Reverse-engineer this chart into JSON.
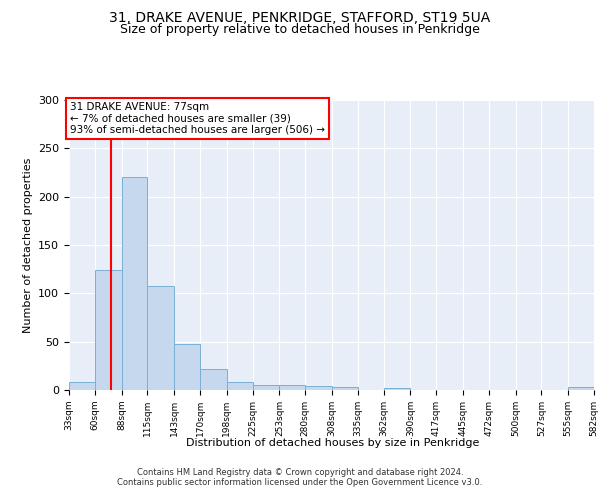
{
  "title1": "31, DRAKE AVENUE, PENKRIDGE, STAFFORD, ST19 5UA",
  "title2": "Size of property relative to detached houses in Penkridge",
  "xlabel": "Distribution of detached houses by size in Penkridge",
  "ylabel": "Number of detached properties",
  "bin_edges": [
    33,
    60,
    88,
    115,
    143,
    170,
    198,
    225,
    253,
    280,
    308,
    335,
    362,
    390,
    417,
    445,
    472,
    500,
    527,
    555,
    582
  ],
  "bar_heights": [
    8,
    124,
    220,
    108,
    48,
    22,
    8,
    5,
    5,
    4,
    3,
    0,
    2,
    0,
    0,
    0,
    0,
    0,
    0,
    3
  ],
  "bar_color": "#c5d8ed",
  "bar_edgecolor": "#7aafd4",
  "property_line_x": 77,
  "property_line_color": "red",
  "annotation_text": "31 DRAKE AVENUE: 77sqm\n← 7% of detached houses are smaller (39)\n93% of semi-detached houses are larger (506) →",
  "annotation_box_color": "white",
  "annotation_box_edgecolor": "red",
  "ylim": [
    0,
    300
  ],
  "yticks": [
    0,
    50,
    100,
    150,
    200,
    250,
    300
  ],
  "bg_color": "#e8eef7",
  "fig_bg_color": "#ffffff",
  "footer1": "Contains HM Land Registry data © Crown copyright and database right 2024.",
  "footer2": "Contains public sector information licensed under the Open Government Licence v3.0."
}
